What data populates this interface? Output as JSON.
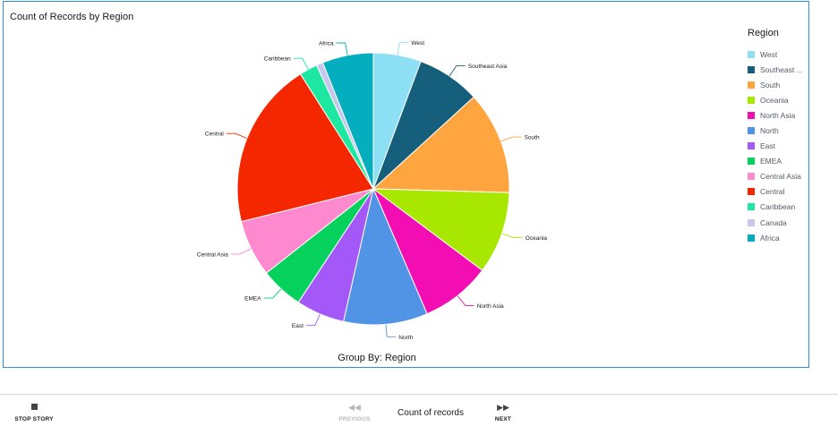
{
  "chart_data": {
    "type": "pie",
    "title": "Count of Records by Region",
    "group_by_label": "Group By: Region",
    "legend_title": "Region",
    "legend_position": "right",
    "categories": [
      "West",
      "Southeast Asia",
      "South",
      "Oceania",
      "North Asia",
      "North",
      "East",
      "EMEA",
      "Central Asia",
      "Central",
      "Caribbean",
      "Canada",
      "Africa"
    ],
    "legend_labels": [
      "West",
      "Southeast ...",
      "South",
      "Oceania",
      "North Asia",
      "North",
      "East",
      "EMEA",
      "Central Asia",
      "Central",
      "Caribbean",
      "Canada",
      "Africa"
    ],
    "values": [
      5.8,
      7.7,
      12.5,
      10.0,
      8.5,
      10.2,
      5.9,
      5.2,
      6.9,
      20.3,
      2.2,
      0.8,
      6.2
    ],
    "colors": [
      "#8ddff4",
      "#165f7c",
      "#ffa53f",
      "#a8e800",
      "#f20eb3",
      "#5194e5",
      "#a458f8",
      "#05d15c",
      "#ff89ce",
      "#f52700",
      "#1de8a2",
      "#c7c6ec",
      "#05aebe"
    ]
  },
  "footer": {
    "stop_story": "STOP STORY",
    "previous": "PREVIOUS",
    "next": "NEXT",
    "title": "Count of records"
  }
}
